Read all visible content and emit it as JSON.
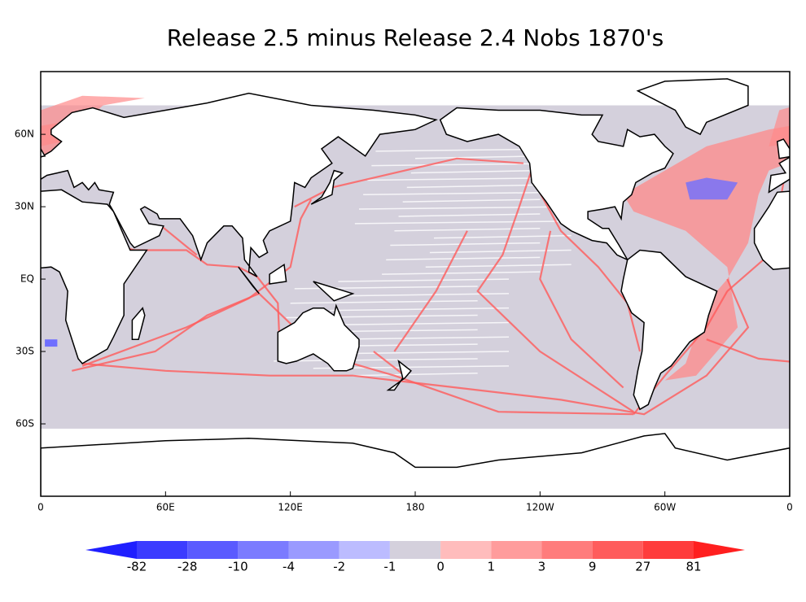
{
  "chart_data": {
    "type": "map",
    "title": "Release 2.5 minus Release 2.4  Nobs 1870's",
    "xlim": [
      0,
      360
    ],
    "ylim": [
      -90,
      86
    ],
    "xticks": [
      0,
      {
        "value": 60,
        "label": "60E"
      },
      {
        "value": 120,
        "label": "120E"
      },
      180,
      {
        "value": 240,
        "label": "120W"
      },
      {
        "value": 300,
        "label": "60W"
      },
      {
        "value": 360,
        "label": "0"
      }
    ],
    "yticks": [
      {
        "value": 60,
        "label": "60N"
      },
      {
        "value": 30,
        "label": "30N"
      },
      {
        "value": 0,
        "label": "EQ"
      },
      {
        "value": -30,
        "label": "30S"
      },
      {
        "value": -60,
        "label": "60S"
      }
    ],
    "colorbar": {
      "levels": [
        -82,
        -28,
        -10,
        -4,
        -2,
        -1,
        0,
        1,
        3,
        9,
        27,
        81
      ],
      "colors": [
        "#1f1fff",
        "#3c3cff",
        "#5a5aff",
        "#7b7bff",
        "#9a9aff",
        "#bcbcff",
        "#d4d0dc",
        "#ffbcbc",
        "#ff9c9c",
        "#ff7c7c",
        "#ff5c5c",
        "#ff3c3c",
        "#ff1f1f"
      ]
    }
  }
}
